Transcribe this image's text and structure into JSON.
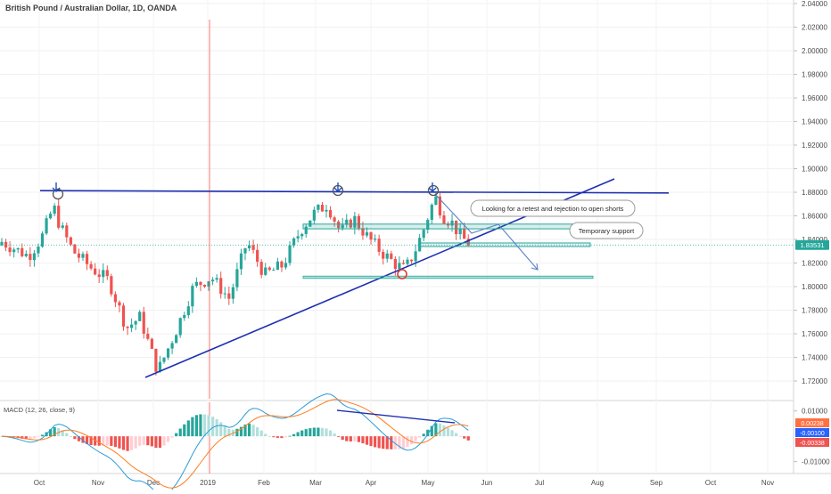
{
  "chart_data": {
    "type": "candlestick",
    "title": "British Pound / Australian Dollar, 1D, OANDA",
    "price_axis": {
      "ticks": [
        "2.04000",
        "2.02000",
        "2.00000",
        "1.98000",
        "1.96000",
        "1.94000",
        "1.92000",
        "1.90000",
        "1.88000",
        "1.86000",
        "1.84000",
        "1.82000",
        "1.80000",
        "1.78000",
        "1.76000",
        "1.74000",
        "1.72000"
      ],
      "range": [
        1.71,
        2.04
      ]
    },
    "time_axis": {
      "labels": [
        "Oct",
        "Nov",
        "Dec",
        "2019",
        "Feb",
        "Mar",
        "Apr",
        "May",
        "Jun",
        "Jul",
        "Aug",
        "Sep",
        "Oct",
        "Nov"
      ]
    },
    "last_price": {
      "value": 1.83531,
      "label": "1.83531"
    },
    "key_levels": {
      "resistance": 1.88,
      "green_zone": [
        1.849,
        1.853
      ],
      "temporary_support": [
        1.834,
        1.837
      ],
      "lower_support": 1.808
    },
    "price_series": [
      {
        "t": 0,
        "o": 1.835,
        "h": 1.842,
        "l": 1.828,
        "c": 1.838
      },
      {
        "t": 30,
        "o": 1.838,
        "h": 1.848,
        "l": 1.824,
        "c": 1.826
      },
      {
        "t": 45,
        "o": 1.826,
        "h": 1.845,
        "l": 1.82,
        "c": 1.842
      },
      {
        "t": 58,
        "o": 1.842,
        "h": 1.874,
        "l": 1.84,
        "c": 1.868
      },
      {
        "t": 65,
        "o": 1.868,
        "h": 1.872,
        "l": 1.848,
        "c": 1.852
      },
      {
        "t": 80,
        "o": 1.852,
        "h": 1.856,
        "l": 1.826,
        "c": 1.83
      },
      {
        "t": 100,
        "o": 1.83,
        "h": 1.836,
        "l": 1.812,
        "c": 1.816
      },
      {
        "t": 120,
        "o": 1.816,
        "h": 1.822,
        "l": 1.8,
        "c": 1.805
      },
      {
        "t": 140,
        "o": 1.805,
        "h": 1.806,
        "l": 1.76,
        "c": 1.765
      },
      {
        "t": 155,
        "o": 1.765,
        "h": 1.782,
        "l": 1.748,
        "c": 1.774
      },
      {
        "t": 175,
        "o": 1.774,
        "h": 1.776,
        "l": 1.723,
        "c": 1.728
      },
      {
        "t": 195,
        "o": 1.728,
        "h": 1.768,
        "l": 1.726,
        "c": 1.762
      },
      {
        "t": 215,
        "o": 1.762,
        "h": 1.804,
        "l": 1.758,
        "c": 1.8
      },
      {
        "t": 235,
        "o": 1.8,
        "h": 1.83,
        "l": 1.79,
        "c": 1.808
      },
      {
        "t": 255,
        "o": 1.808,
        "h": 1.812,
        "l": 1.776,
        "c": 1.79
      },
      {
        "t": 275,
        "o": 1.79,
        "h": 1.844,
        "l": 1.788,
        "c": 1.838
      },
      {
        "t": 295,
        "o": 1.838,
        "h": 1.842,
        "l": 1.802,
        "c": 1.81
      },
      {
        "t": 315,
        "o": 1.81,
        "h": 1.83,
        "l": 1.796,
        "c": 1.818
      },
      {
        "t": 335,
        "o": 1.818,
        "h": 1.852,
        "l": 1.808,
        "c": 1.848
      },
      {
        "t": 350,
        "o": 1.848,
        "h": 1.868,
        "l": 1.844,
        "c": 1.862
      },
      {
        "t": 365,
        "o": 1.862,
        "h": 1.876,
        "l": 1.846,
        "c": 1.87
      },
      {
        "t": 380,
        "o": 1.87,
        "h": 1.882,
        "l": 1.84,
        "c": 1.846
      },
      {
        "t": 395,
        "o": 1.846,
        "h": 1.866,
        "l": 1.842,
        "c": 1.858
      },
      {
        "t": 410,
        "o": 1.858,
        "h": 1.862,
        "l": 1.834,
        "c": 1.842
      },
      {
        "t": 425,
        "o": 1.842,
        "h": 1.848,
        "l": 1.826,
        "c": 1.83
      },
      {
        "t": 440,
        "o": 1.83,
        "h": 1.836,
        "l": 1.816,
        "c": 1.82
      },
      {
        "t": 452,
        "o": 1.82,
        "h": 1.824,
        "l": 1.809,
        "c": 1.814
      },
      {
        "t": 462,
        "o": 1.814,
        "h": 1.83,
        "l": 1.812,
        "c": 1.828
      },
      {
        "t": 472,
        "o": 1.828,
        "h": 1.85,
        "l": 1.826,
        "c": 1.846
      },
      {
        "t": 480,
        "o": 1.846,
        "h": 1.868,
        "l": 1.844,
        "c": 1.864
      },
      {
        "t": 486,
        "o": 1.864,
        "h": 1.882,
        "l": 1.86,
        "c": 1.876
      },
      {
        "t": 495,
        "o": 1.876,
        "h": 1.878,
        "l": 1.852,
        "c": 1.86
      },
      {
        "t": 505,
        "o": 1.86,
        "h": 1.866,
        "l": 1.848,
        "c": 1.854
      },
      {
        "t": 515,
        "o": 1.854,
        "h": 1.86,
        "l": 1.838,
        "c": 1.842
      },
      {
        "t": 525,
        "o": 1.842,
        "h": 1.846,
        "l": 1.834,
        "c": 1.836
      }
    ],
    "macd": {
      "label": "MACD (12, 26, close, 9)",
      "values": [
        {
          "label": "0.00238",
          "color": "#ff7043"
        },
        {
          "label": "-0.00100",
          "color": "#2962ff"
        },
        {
          "label": "-0.00338",
          "color": "#ef5350"
        }
      ],
      "axis_ticks": [
        "0.01000",
        "-0.01000"
      ],
      "range": [
        -0.014,
        0.012
      ]
    },
    "annotations": [
      {
        "text": "Looking for a retest and rejection to open shorts"
      },
      {
        "text": "Temporary support"
      }
    ]
  },
  "colors": {
    "up": "#26a69a",
    "down": "#ef5350",
    "trendline": "#1d2fb0",
    "zone": "#26a69a",
    "arrow": "#5b82c4",
    "vline": "#f44336",
    "macd_line": "#2a9bd8",
    "signal_line": "#ff7d1f"
  }
}
